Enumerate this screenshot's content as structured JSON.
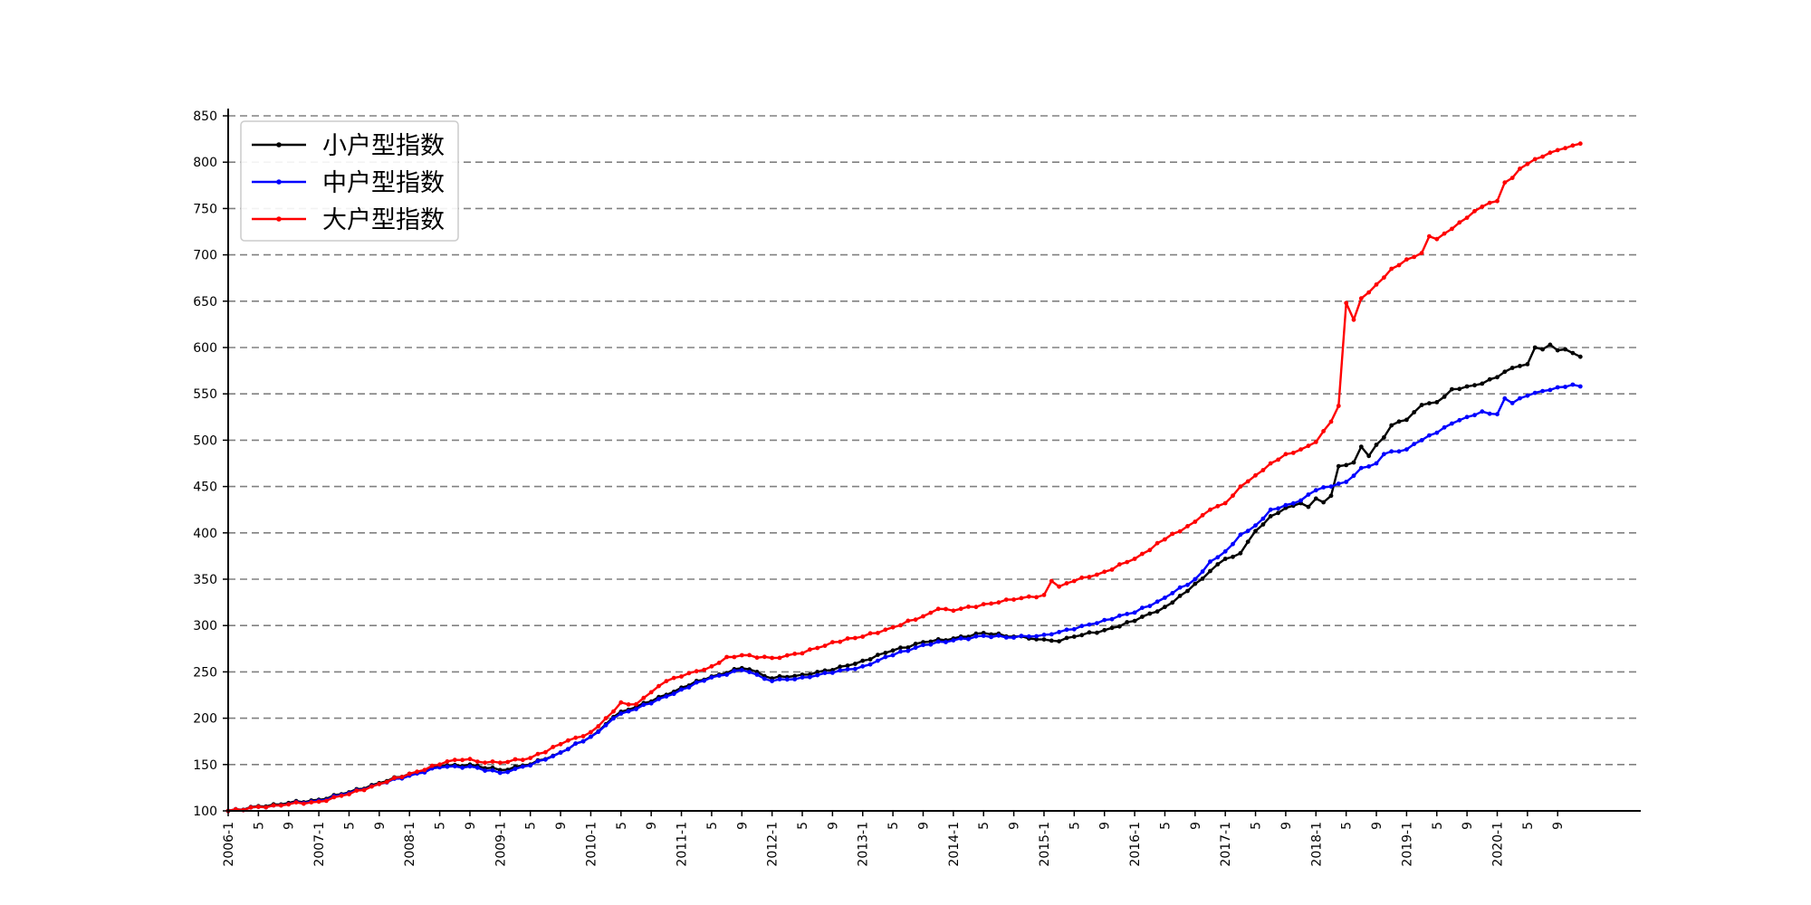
{
  "chart_data": {
    "type": "line",
    "title": "",
    "xlabel": "",
    "ylabel": "",
    "ylim": [
      100,
      850
    ],
    "yticks": [
      100,
      150,
      200,
      250,
      300,
      350,
      400,
      450,
      500,
      550,
      600,
      650,
      700,
      750,
      800,
      850
    ],
    "xticks": [
      {
        "i": 0,
        "label": "2006-1"
      },
      {
        "i": 4,
        "label": "5"
      },
      {
        "i": 8,
        "label": "9"
      },
      {
        "i": 12,
        "label": "2007-1"
      },
      {
        "i": 16,
        "label": "5"
      },
      {
        "i": 20,
        "label": "9"
      },
      {
        "i": 24,
        "label": "2008-1"
      },
      {
        "i": 28,
        "label": "5"
      },
      {
        "i": 32,
        "label": "9"
      },
      {
        "i": 36,
        "label": "2009-1"
      },
      {
        "i": 40,
        "label": "5"
      },
      {
        "i": 44,
        "label": "9"
      },
      {
        "i": 48,
        "label": "2010-1"
      },
      {
        "i": 52,
        "label": "5"
      },
      {
        "i": 56,
        "label": "9"
      },
      {
        "i": 60,
        "label": "2011-1"
      },
      {
        "i": 64,
        "label": "5"
      },
      {
        "i": 68,
        "label": "9"
      },
      {
        "i": 72,
        "label": "2012-1"
      },
      {
        "i": 76,
        "label": "5"
      },
      {
        "i": 80,
        "label": "9"
      },
      {
        "i": 84,
        "label": "2013-1"
      },
      {
        "i": 88,
        "label": "5"
      },
      {
        "i": 92,
        "label": "9"
      },
      {
        "i": 96,
        "label": "2014-1"
      },
      {
        "i": 100,
        "label": "5"
      },
      {
        "i": 104,
        "label": "9"
      },
      {
        "i": 108,
        "label": "2015-1"
      },
      {
        "i": 112,
        "label": "5"
      },
      {
        "i": 116,
        "label": "9"
      },
      {
        "i": 120,
        "label": "2016-1"
      },
      {
        "i": 124,
        "label": "5"
      },
      {
        "i": 128,
        "label": "9"
      },
      {
        "i": 132,
        "label": "2017-1"
      },
      {
        "i": 136,
        "label": "5"
      },
      {
        "i": 140,
        "label": "9"
      },
      {
        "i": 144,
        "label": "2018-1"
      },
      {
        "i": 148,
        "label": "5"
      },
      {
        "i": 152,
        "label": "9"
      },
      {
        "i": 156,
        "label": "2019-1"
      },
      {
        "i": 160,
        "label": "5"
      },
      {
        "i": 164,
        "label": "9"
      },
      {
        "i": 168,
        "label": "2020-1"
      },
      {
        "i": 172,
        "label": "5"
      },
      {
        "i": 176,
        "label": "9"
      }
    ],
    "x_range": [
      0,
      187
    ],
    "grid": "horizontal-dashed",
    "legend": "top-left",
    "series_anchors_note": "monthly points from 2006-1 (index 0) to 2020-12 (index 179); values read from chart",
    "series": [
      {
        "name": "小户型指数",
        "color": "#000000",
        "anchors": [
          [
            0,
            100
          ],
          [
            6,
            107
          ],
          [
            12,
            112
          ],
          [
            16,
            120
          ],
          [
            20,
            130
          ],
          [
            24,
            140
          ],
          [
            28,
            148
          ],
          [
            32,
            150
          ],
          [
            36,
            144
          ],
          [
            40,
            150
          ],
          [
            44,
            163
          ],
          [
            48,
            180
          ],
          [
            52,
            207
          ],
          [
            56,
            218
          ],
          [
            60,
            233
          ],
          [
            64,
            245
          ],
          [
            68,
            254
          ],
          [
            70,
            250
          ],
          [
            72,
            243
          ],
          [
            76,
            247
          ],
          [
            80,
            252
          ],
          [
            84,
            262
          ],
          [
            88,
            273
          ],
          [
            92,
            282
          ],
          [
            96,
            286
          ],
          [
            100,
            292
          ],
          [
            104,
            288
          ],
          [
            108,
            285
          ],
          [
            110,
            283
          ],
          [
            112,
            288
          ],
          [
            116,
            295
          ],
          [
            120,
            305
          ],
          [
            124,
            320
          ],
          [
            126,
            332
          ],
          [
            128,
            345
          ],
          [
            132,
            372
          ],
          [
            134,
            378
          ],
          [
            136,
            402
          ],
          [
            138,
            418
          ],
          [
            140,
            427
          ],
          [
            142,
            432
          ],
          [
            143,
            428
          ],
          [
            144,
            437
          ],
          [
            145,
            433
          ],
          [
            146,
            440
          ],
          [
            147,
            472
          ],
          [
            149,
            476
          ],
          [
            150,
            493
          ],
          [
            151,
            483
          ],
          [
            152,
            495
          ],
          [
            153,
            503
          ],
          [
            154,
            516
          ],
          [
            156,
            522
          ],
          [
            158,
            538
          ],
          [
            160,
            541
          ],
          [
            162,
            555
          ],
          [
            164,
            558
          ],
          [
            166,
            561
          ],
          [
            168,
            568
          ],
          [
            170,
            578
          ],
          [
            172,
            582
          ],
          [
            173,
            600
          ],
          [
            174,
            598
          ],
          [
            175,
            603
          ],
          [
            176,
            597
          ],
          [
            177,
            598
          ],
          [
            178,
            594
          ],
          [
            179,
            590
          ]
        ]
      },
      {
        "name": "中户型指数",
        "color": "#0000ff",
        "anchors": [
          [
            0,
            100
          ],
          [
            6,
            106
          ],
          [
            12,
            111
          ],
          [
            16,
            119
          ],
          [
            20,
            129
          ],
          [
            24,
            138
          ],
          [
            28,
            147
          ],
          [
            32,
            148
          ],
          [
            36,
            141
          ],
          [
            40,
            149
          ],
          [
            44,
            163
          ],
          [
            48,
            180
          ],
          [
            52,
            205
          ],
          [
            56,
            216
          ],
          [
            60,
            231
          ],
          [
            64,
            244
          ],
          [
            68,
            252
          ],
          [
            70,
            247
          ],
          [
            72,
            240
          ],
          [
            76,
            244
          ],
          [
            80,
            249
          ],
          [
            84,
            256
          ],
          [
            88,
            268
          ],
          [
            92,
            279
          ],
          [
            96,
            284
          ],
          [
            100,
            289
          ],
          [
            104,
            287
          ],
          [
            108,
            290
          ],
          [
            112,
            296
          ],
          [
            116,
            306
          ],
          [
            120,
            314
          ],
          [
            124,
            330
          ],
          [
            128,
            350
          ],
          [
            130,
            369
          ],
          [
            132,
            380
          ],
          [
            134,
            398
          ],
          [
            136,
            408
          ],
          [
            138,
            425
          ],
          [
            140,
            430
          ],
          [
            142,
            435
          ],
          [
            144,
            446
          ],
          [
            146,
            450
          ],
          [
            148,
            455
          ],
          [
            150,
            470
          ],
          [
            152,
            475
          ],
          [
            153,
            485
          ],
          [
            156,
            490
          ],
          [
            158,
            500
          ],
          [
            160,
            508
          ],
          [
            162,
            518
          ],
          [
            164,
            525
          ],
          [
            166,
            531
          ],
          [
            168,
            528
          ],
          [
            169,
            545
          ],
          [
            170,
            540
          ],
          [
            172,
            548
          ],
          [
            174,
            553
          ],
          [
            176,
            557
          ],
          [
            178,
            560
          ],
          [
            179,
            558
          ]
        ]
      },
      {
        "name": "大户型指数",
        "color": "#ff0000",
        "anchors": [
          [
            0,
            100
          ],
          [
            6,
            106
          ],
          [
            12,
            110
          ],
          [
            16,
            118
          ],
          [
            20,
            129
          ],
          [
            24,
            140
          ],
          [
            28,
            150
          ],
          [
            30,
            155
          ],
          [
            32,
            156
          ],
          [
            34,
            152
          ],
          [
            36,
            152
          ],
          [
            40,
            157
          ],
          [
            44,
            172
          ],
          [
            48,
            185
          ],
          [
            50,
            200
          ],
          [
            52,
            217
          ],
          [
            54,
            215
          ],
          [
            56,
            228
          ],
          [
            58,
            240
          ],
          [
            60,
            245
          ],
          [
            64,
            256
          ],
          [
            66,
            266
          ],
          [
            68,
            268
          ],
          [
            72,
            265
          ],
          [
            76,
            270
          ],
          [
            80,
            282
          ],
          [
            84,
            288
          ],
          [
            88,
            298
          ],
          [
            92,
            310
          ],
          [
            94,
            318
          ],
          [
            96,
            316
          ],
          [
            100,
            323
          ],
          [
            104,
            328
          ],
          [
            108,
            333
          ],
          [
            109,
            348
          ],
          [
            110,
            342
          ],
          [
            112,
            348
          ],
          [
            116,
            358
          ],
          [
            120,
            372
          ],
          [
            124,
            393
          ],
          [
            128,
            412
          ],
          [
            130,
            425
          ],
          [
            132,
            432
          ],
          [
            134,
            450
          ],
          [
            136,
            462
          ],
          [
            138,
            475
          ],
          [
            140,
            485
          ],
          [
            142,
            490
          ],
          [
            144,
            498
          ],
          [
            146,
            520
          ],
          [
            147,
            537
          ],
          [
            148,
            648
          ],
          [
            149,
            630
          ],
          [
            150,
            653
          ],
          [
            152,
            668
          ],
          [
            154,
            685
          ],
          [
            156,
            695
          ],
          [
            158,
            702
          ],
          [
            159,
            720
          ],
          [
            160,
            717
          ],
          [
            162,
            728
          ],
          [
            164,
            740
          ],
          [
            166,
            752
          ],
          [
            168,
            758
          ],
          [
            169,
            778
          ],
          [
            170,
            783
          ],
          [
            171,
            793
          ],
          [
            172,
            798
          ],
          [
            174,
            806
          ],
          [
            176,
            813
          ],
          [
            178,
            818
          ],
          [
            179,
            820
          ]
        ]
      }
    ]
  }
}
